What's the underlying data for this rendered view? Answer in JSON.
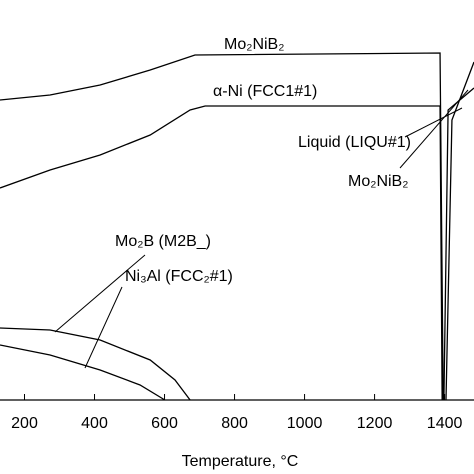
{
  "chart_data": {
    "type": "line",
    "x_label": "Temperature, °C",
    "xlim": [
      130,
      1484
    ],
    "xticks": [
      200,
      400,
      600,
      800,
      1000,
      1200,
      1400
    ],
    "ylim": [
      0,
      1
    ],
    "series": [
      {
        "name": "Mo₂NiB₂",
        "color": "#000000",
        "x": [
          130,
          273,
          416,
          559,
          687,
          1387,
          1396
        ],
        "values": [
          0.75,
          0.7625,
          0.7875,
          0.825,
          0.8625,
          0.8675,
          0
        ]
      },
      {
        "name": "α-Ni (FCC1#1)",
        "color": "#000000",
        "x": [
          130,
          273,
          416,
          559,
          673,
          716,
          1387,
          1393
        ],
        "values": [
          0.53,
          0.575,
          0.6125,
          0.6625,
          0.725,
          0.735,
          0.735,
          0
        ]
      },
      {
        "name": "Mo₂B (M2B_)",
        "color": "#000000",
        "x": [
          130,
          273,
          416,
          559,
          630,
          673
        ],
        "values": [
          0.18,
          0.175,
          0.15,
          0.1,
          0.05,
          0
        ]
      },
      {
        "name": "Ni₃Al (FCC₂#1)",
        "color": "#000000",
        "x": [
          130,
          273,
          416,
          530,
          601
        ],
        "values": [
          0.1375,
          0.1125,
          0.075,
          0.0375,
          0
        ]
      },
      {
        "name": "Liquid (LIQU#1)",
        "color": "#000000",
        "x": [
          1404,
          1421,
          1484
        ],
        "values": [
          0,
          0.7,
          0.845
        ]
      },
      {
        "name": "Mo₂NiB₂",
        "color": "#000000",
        "x": [
          1398,
          1410,
          1484
        ],
        "values": [
          0,
          0.725,
          0.78
        ]
      }
    ]
  }
}
